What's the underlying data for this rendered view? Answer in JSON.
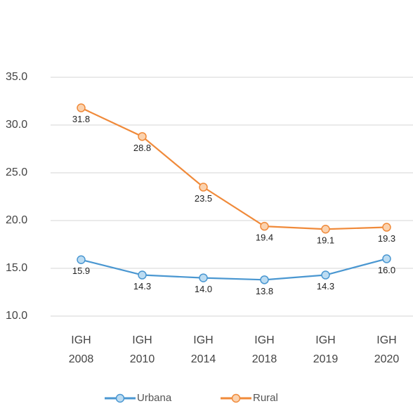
{
  "chart_data": {
    "type": "line",
    "categories": [
      "IGH 2008",
      "IGH 2010",
      "IGH 2014",
      "IGH 2018",
      "IGH 2019",
      "IGH 2020"
    ],
    "series": [
      {
        "name": "Urbana",
        "color": "#4a97d1",
        "marker_fill": "#bcdcf2",
        "values": [
          15.9,
          14.3,
          14.0,
          13.8,
          14.3,
          16.0
        ],
        "value_labels": [
          "15.9",
          "14.3",
          "14.0",
          "13.8",
          "14.3",
          "16.0"
        ]
      },
      {
        "name": "Rural",
        "color": "#f08a3a",
        "marker_fill": "#fbd2ae",
        "values": [
          31.8,
          28.8,
          23.5,
          19.4,
          19.1,
          19.3
        ],
        "value_labels": [
          "31.8",
          "28.8",
          "23.5",
          "19.4",
          "19.1",
          "19.3"
        ]
      }
    ],
    "ylim": [
      10,
      35
    ],
    "yticks": [
      {
        "value": 10,
        "label": "10.0"
      },
      {
        "value": 15,
        "label": "15.0"
      },
      {
        "value": 20,
        "label": "20.0"
      },
      {
        "value": 25,
        "label": "25.0"
      },
      {
        "value": 30,
        "label": "30.0"
      },
      {
        "value": 35,
        "label": "35.0"
      }
    ],
    "grid": true,
    "legend": "bottom"
  }
}
